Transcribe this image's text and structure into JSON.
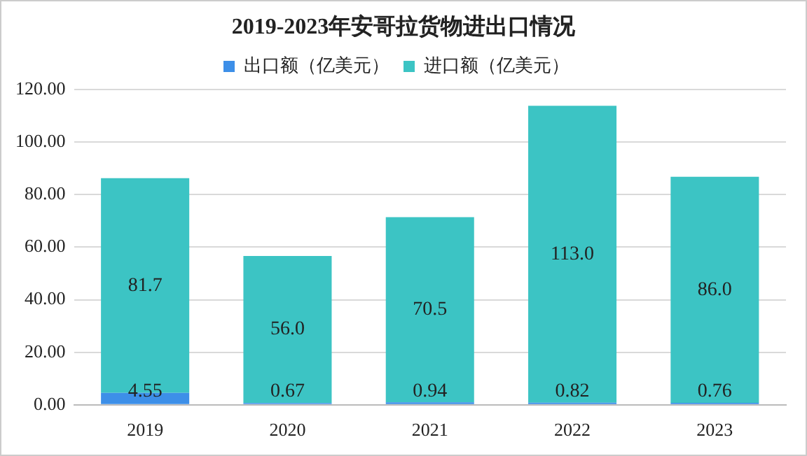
{
  "chart_data": {
    "type": "bar",
    "title": "2019-2023年安哥拉货物进出口情况",
    "categories": [
      "2019",
      "2020",
      "2021",
      "2022",
      "2023"
    ],
    "stacked": true,
    "series": [
      {
        "name": "出口额（亿美元）",
        "color": "#3d8fe8",
        "values": [
          4.55,
          0.67,
          0.94,
          0.82,
          0.76
        ],
        "value_labels": [
          "4.55",
          "0.67",
          "0.94",
          "0.82",
          "0.76"
        ]
      },
      {
        "name": "进口额（亿美元）",
        "color": "#3cc4c4",
        "values": [
          81.7,
          56.0,
          70.5,
          113.0,
          86.0
        ],
        "value_labels": [
          "81.7",
          "56.0",
          "70.5",
          "113.0",
          "86.0"
        ]
      }
    ],
    "ylim": [
      0,
      120
    ],
    "yticks": [
      {
        "value": 0,
        "label": "0.00"
      },
      {
        "value": 20,
        "label": "20.00"
      },
      {
        "value": 40,
        "label": "40.00"
      },
      {
        "value": 60,
        "label": "60.00"
      },
      {
        "value": 80,
        "label": "80.00"
      },
      {
        "value": 100,
        "label": "100.00"
      },
      {
        "value": 120,
        "label": "120.00"
      }
    ],
    "grid": "y",
    "legend": "top"
  }
}
